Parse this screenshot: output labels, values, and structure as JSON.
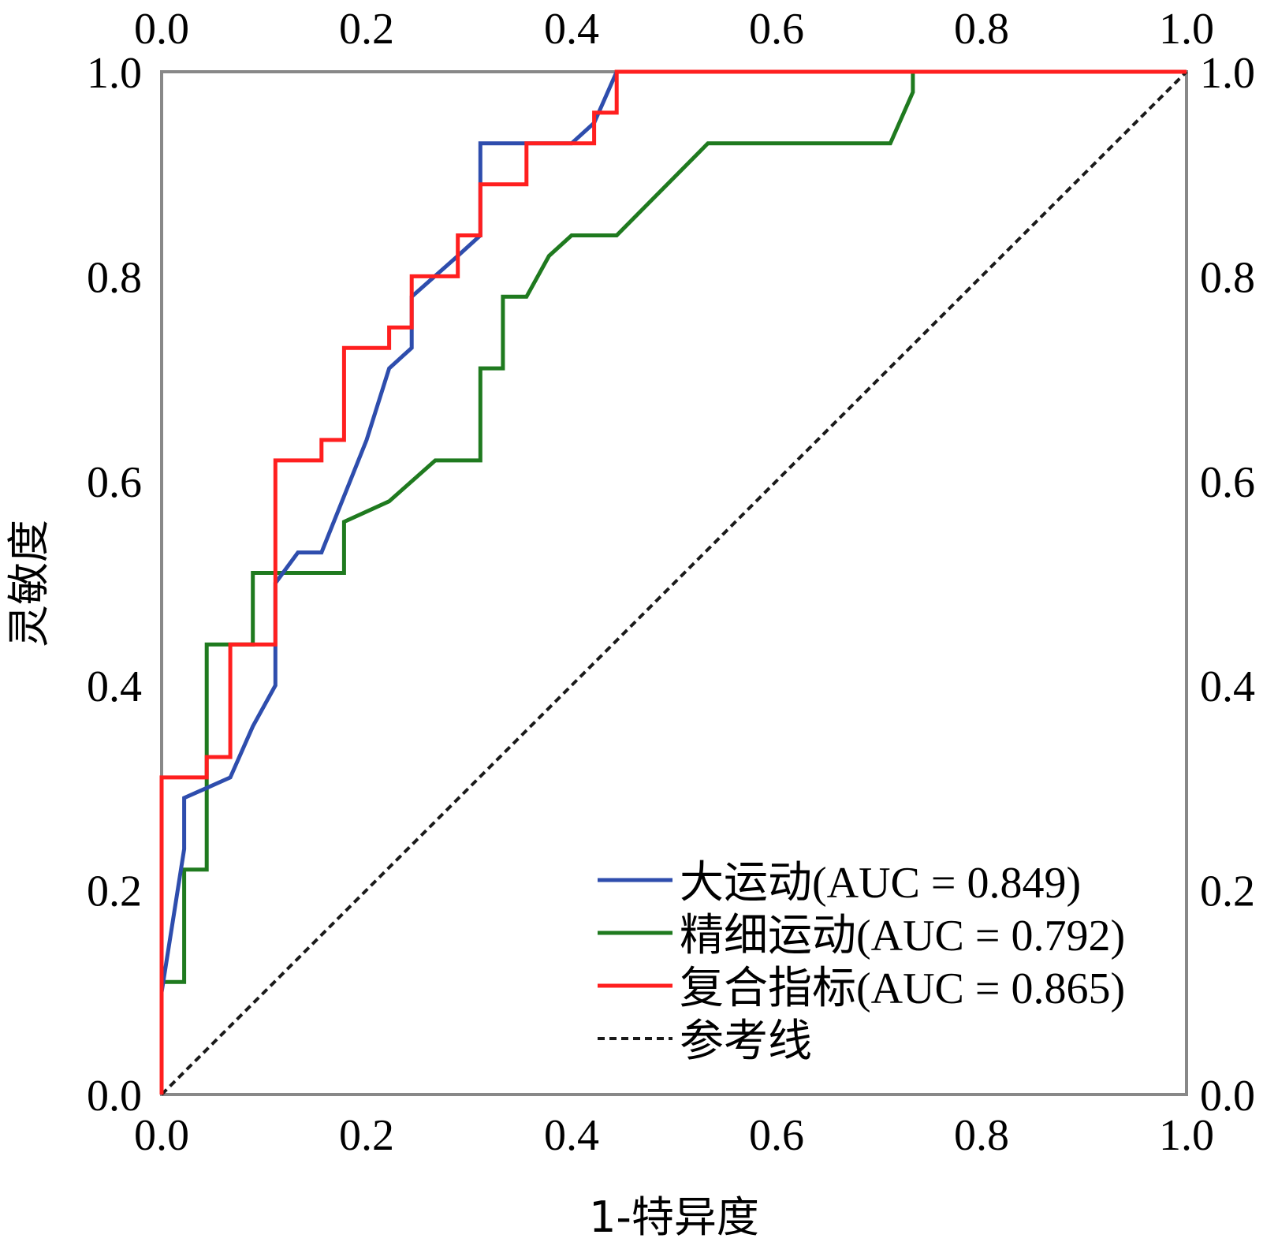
{
  "chart_data": {
    "type": "line",
    "title": "",
    "xlabel": "1-特异度",
    "ylabel": "灵敏度",
    "xlim": [
      0,
      1
    ],
    "ylim": [
      0,
      1
    ],
    "grid": false,
    "legend_position": "bottom-right",
    "x_ticks": [
      "0.0",
      "0.2",
      "0.4",
      "0.6",
      "0.8",
      "1.0"
    ],
    "y_ticks": [
      "0.0",
      "0.2",
      "0.4",
      "0.6",
      "0.8",
      "1.0"
    ],
    "series": [
      {
        "name": "大运动(AUC = 0.849)",
        "color": "#2e4dad",
        "dash": false,
        "x": [
          0,
          0,
          0.022,
          0.022,
          0.067,
          0.089,
          0.111,
          0.111,
          0.133,
          0.156,
          0.2,
          0.222,
          0.244,
          0.244,
          0.289,
          0.311,
          0.311,
          0.4,
          0.422,
          0.444,
          1.0
        ],
        "y": [
          0,
          0.1,
          0.24,
          0.29,
          0.31,
          0.36,
          0.4,
          0.5,
          0.53,
          0.53,
          0.64,
          0.71,
          0.73,
          0.78,
          0.82,
          0.84,
          0.93,
          0.93,
          0.95,
          1.0,
          1.0
        ]
      },
      {
        "name": "精细运动(AUC = 0.792)",
        "color": "#1f7a1f",
        "dash": false,
        "x": [
          0,
          0,
          0.022,
          0.022,
          0.044,
          0.044,
          0.089,
          0.089,
          0.178,
          0.178,
          0.222,
          0.267,
          0.311,
          0.311,
          0.333,
          0.333,
          0.356,
          0.378,
          0.4,
          0.444,
          0.533,
          0.711,
          0.733,
          0.733,
          1.0
        ],
        "y": [
          0,
          0.11,
          0.11,
          0.22,
          0.22,
          0.44,
          0.44,
          0.51,
          0.51,
          0.56,
          0.58,
          0.62,
          0.62,
          0.71,
          0.71,
          0.78,
          0.78,
          0.82,
          0.84,
          0.84,
          0.93,
          0.93,
          0.98,
          1.0,
          1.0
        ]
      },
      {
        "name": "复合指标(AUC = 0.865)",
        "color": "#ff1f1f",
        "dash": false,
        "x": [
          0,
          0,
          0.044,
          0.044,
          0.067,
          0.067,
          0.111,
          0.111,
          0.156,
          0.156,
          0.178,
          0.178,
          0.222,
          0.222,
          0.244,
          0.244,
          0.289,
          0.289,
          0.311,
          0.311,
          0.356,
          0.356,
          0.422,
          0.422,
          0.444,
          0.444,
          1.0
        ],
        "y": [
          0,
          0.31,
          0.31,
          0.33,
          0.33,
          0.44,
          0.44,
          0.62,
          0.62,
          0.64,
          0.64,
          0.73,
          0.73,
          0.75,
          0.75,
          0.8,
          0.8,
          0.84,
          0.84,
          0.89,
          0.89,
          0.93,
          0.93,
          0.96,
          0.96,
          1.0,
          1.0
        ]
      },
      {
        "name": "参考线",
        "color": "#1a1a1a",
        "dash": true,
        "x": [
          0,
          1
        ],
        "y": [
          0,
          1
        ]
      }
    ]
  }
}
